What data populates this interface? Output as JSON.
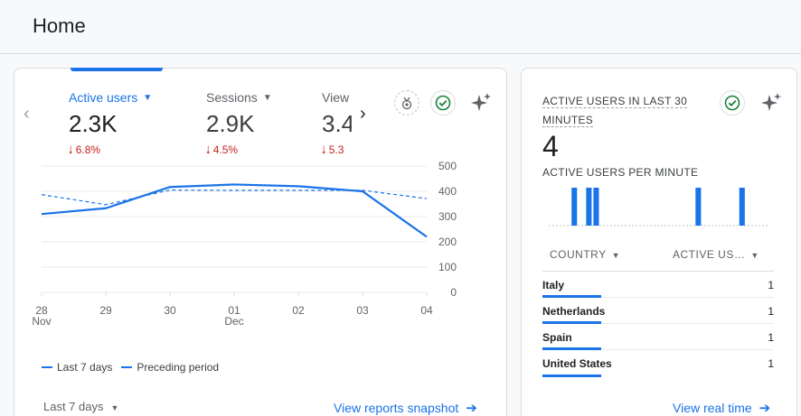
{
  "page": {
    "title": "Home"
  },
  "colors": {
    "accent": "#1a73e8",
    "decline": "#c5221f",
    "success": "#188038"
  },
  "metrics": [
    {
      "label": "Active users",
      "value": "2.3K",
      "change": "6.8%",
      "trend": "down",
      "selected": true
    },
    {
      "label": "Sessions",
      "value": "2.9K",
      "change": "4.5%",
      "trend": "down",
      "selected": false
    },
    {
      "label": "View",
      "value": "3.4",
      "change": "5.3",
      "trend": "down",
      "selected": false
    }
  ],
  "chart_data": {
    "type": "line",
    "x": [
      "28 Nov",
      "29",
      "30",
      "01 Dec",
      "02",
      "03",
      "04"
    ],
    "x_tick_labels": [
      {
        "top": "28",
        "bottom": "Nov"
      },
      {
        "top": "29",
        "bottom": ""
      },
      {
        "top": "30",
        "bottom": ""
      },
      {
        "top": "01",
        "bottom": "Dec"
      },
      {
        "top": "02",
        "bottom": ""
      },
      {
        "top": "03",
        "bottom": ""
      },
      {
        "top": "04",
        "bottom": ""
      }
    ],
    "y_ticks": [
      "0",
      "100",
      "200",
      "300",
      "400",
      "500"
    ],
    "ylim": [
      0,
      500
    ],
    "y_axis_side": "right",
    "grid": true,
    "series": [
      {
        "name": "Last 7 days",
        "style": "solid",
        "values": [
          310,
          333,
          417,
          427,
          420,
          400,
          220
        ]
      },
      {
        "name": "Preceding period",
        "style": "dashed",
        "values": [
          387,
          347,
          405,
          404,
          404,
          404,
          371
        ]
      }
    ],
    "legend_position": "bottom-left"
  },
  "footer": {
    "date_range": "Last 7 days",
    "snapshot_link": "View reports snapshot"
  },
  "realtime": {
    "title_line1": "ACTIVE USERS IN LAST 30",
    "title_line2": "MINUTES",
    "value": "4",
    "per_minute_label": "ACTIVE USERS PER MINUTE",
    "per_minute_values": [
      0,
      0,
      0,
      1,
      0,
      1,
      1,
      0,
      0,
      0,
      0,
      0,
      0,
      0,
      0,
      0,
      0,
      0,
      0,
      0,
      1,
      0,
      0,
      0,
      0,
      0,
      1,
      0,
      0,
      0
    ],
    "table_headers": {
      "country": "COUNTRY",
      "users": "ACTIVE US…"
    },
    "rows": [
      {
        "country": "Italy",
        "users": "1"
      },
      {
        "country": "Netherlands",
        "users": "1"
      },
      {
        "country": "Spain",
        "users": "1"
      },
      {
        "country": "United States",
        "users": "1"
      }
    ],
    "view_link": "View real time"
  },
  "icons": {
    "prev": "chevron-left-icon",
    "next": "chevron-right-icon",
    "medal": "medal-icon",
    "check": "check-circle-icon",
    "sparkle": "sparkle-icon",
    "arrow": "arrow-right-icon",
    "trend_down": "arrow-down-icon"
  }
}
